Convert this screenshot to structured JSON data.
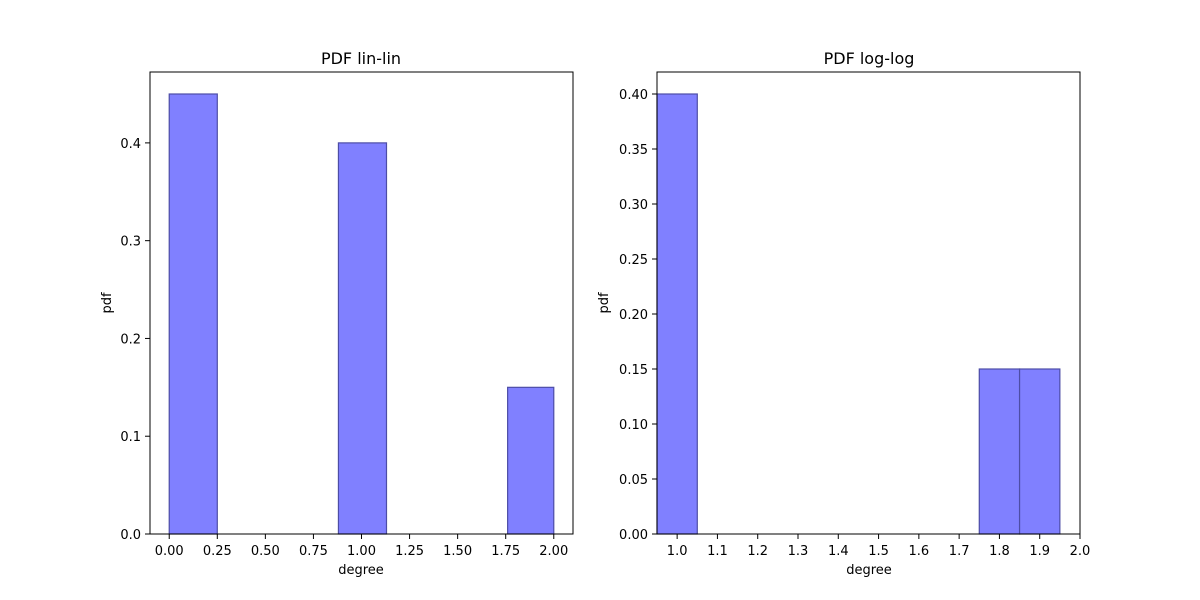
{
  "chart_data": [
    {
      "type": "bar",
      "title": "PDF lin-lin",
      "xlabel": "degree",
      "ylabel": "pdf",
      "xlim": [
        -0.1,
        2.1
      ],
      "ylim": [
        0,
        0.4725
      ],
      "xticks": [
        0.0,
        0.25,
        0.5,
        0.75,
        1.0,
        1.25,
        1.5,
        1.75,
        2.0
      ],
      "xtick_labels": [
        "0.00",
        "0.25",
        "0.50",
        "0.75",
        "1.00",
        "1.25",
        "1.50",
        "1.75",
        "2.00"
      ],
      "yticks": [
        0.0,
        0.1,
        0.2,
        0.3,
        0.4
      ],
      "ytick_labels": [
        "0.0",
        "0.1",
        "0.2",
        "0.3",
        "0.4"
      ],
      "bars": [
        {
          "x0": 0.0,
          "x1": 0.25,
          "value": 0.45
        },
        {
          "x0": 0.25,
          "x1": 0.5,
          "value": 0.0
        },
        {
          "x0": 0.5,
          "x1": 0.75,
          "value": 0.0
        },
        {
          "x0": 0.75,
          "x1": 1.0,
          "value": 0.0
        },
        {
          "x0": 0.88,
          "x1": 1.13,
          "value": 0.4
        },
        {
          "x0": 1.13,
          "x1": 1.38,
          "value": 0.0
        },
        {
          "x0": 1.38,
          "x1": 1.63,
          "value": 0.0
        },
        {
          "x0": 1.76,
          "x1": 2.0,
          "value": 0.15
        }
      ],
      "bar_color": "#8080ff",
      "edge_color": "#4d4da6",
      "grid": false
    },
    {
      "type": "bar",
      "title": "PDF log-log",
      "xlabel": "degree",
      "ylabel": "pdf",
      "xlim": [
        0.95,
        2.0
      ],
      "ylim": [
        0,
        0.42
      ],
      "xticks": [
        1.0,
        1.1,
        1.2,
        1.3,
        1.4,
        1.5,
        1.6,
        1.7,
        1.8,
        1.9,
        2.0
      ],
      "xtick_labels": [
        "1.0",
        "1.1",
        "1.2",
        "1.3",
        "1.4",
        "1.5",
        "1.6",
        "1.7",
        "1.8",
        "1.9",
        "2.0"
      ],
      "yticks": [
        0.0,
        0.05,
        0.1,
        0.15,
        0.2,
        0.25,
        0.3,
        0.35,
        0.4
      ],
      "ytick_labels": [
        "0.00",
        "0.05",
        "0.10",
        "0.15",
        "0.20",
        "0.25",
        "0.30",
        "0.35",
        "0.40"
      ],
      "bars": [
        {
          "x0": 0.95,
          "x1": 1.05,
          "value": 0.4
        },
        {
          "x0": 1.05,
          "x1": 1.15,
          "value": 0.0
        },
        {
          "x0": 1.15,
          "x1": 1.25,
          "value": 0.0
        },
        {
          "x0": 1.25,
          "x1": 1.35,
          "value": 0.0
        },
        {
          "x0": 1.35,
          "x1": 1.45,
          "value": 0.0
        },
        {
          "x0": 1.45,
          "x1": 1.55,
          "value": 0.0
        },
        {
          "x0": 1.55,
          "x1": 1.65,
          "value": 0.0
        },
        {
          "x0": 1.65,
          "x1": 1.75,
          "value": 0.0
        },
        {
          "x0": 1.75,
          "x1": 1.85,
          "value": 0.15
        },
        {
          "x0": 1.85,
          "x1": 1.95,
          "value": 0.15
        }
      ],
      "bar_color": "#8080ff",
      "edge_color": "#4d4da6",
      "grid": false
    }
  ]
}
